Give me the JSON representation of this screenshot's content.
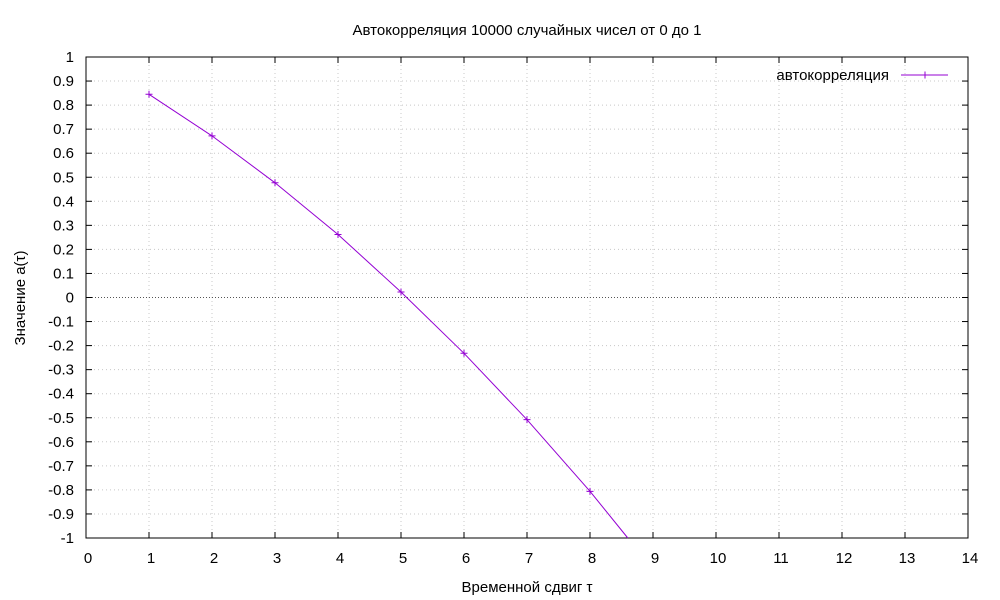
{
  "chart_data": {
    "type": "line",
    "title": "Автокорреляция 10000 случайных чисел от 0 до 1",
    "xlabel": "Временной сдвиг τ",
    "ylabel": "Значение a(τ)",
    "xlim": [
      0,
      14
    ],
    "ylim": [
      -1,
      1
    ],
    "x_ticks": [
      "0",
      "1",
      "2",
      "3",
      "4",
      "5",
      "6",
      "7",
      "8",
      "9",
      "10",
      "11",
      "12",
      "13",
      "14"
    ],
    "y_ticks": [
      "1",
      "0.9",
      "0.8",
      "0.7",
      "0.6",
      "0.5",
      "0.4",
      "0.3",
      "0.2",
      "0.1",
      "0",
      "-0.1",
      "-0.2",
      "-0.3",
      "-0.4",
      "-0.5",
      "-0.6",
      "-0.7",
      "-0.8",
      "-0.9",
      "-1"
    ],
    "grid": true,
    "legend_position": "top-right",
    "series": [
      {
        "name": "автокорреляция",
        "color": "#9400d3",
        "x": [
          1,
          2,
          3,
          4,
          5,
          6,
          7,
          8,
          8.6
        ],
        "y": [
          0.845,
          0.672,
          0.477,
          0.262,
          0.023,
          -0.232,
          -0.508,
          -0.806,
          -1.0
        ],
        "markers": [
          1,
          2,
          3,
          4,
          5,
          6,
          7,
          8
        ]
      }
    ]
  }
}
